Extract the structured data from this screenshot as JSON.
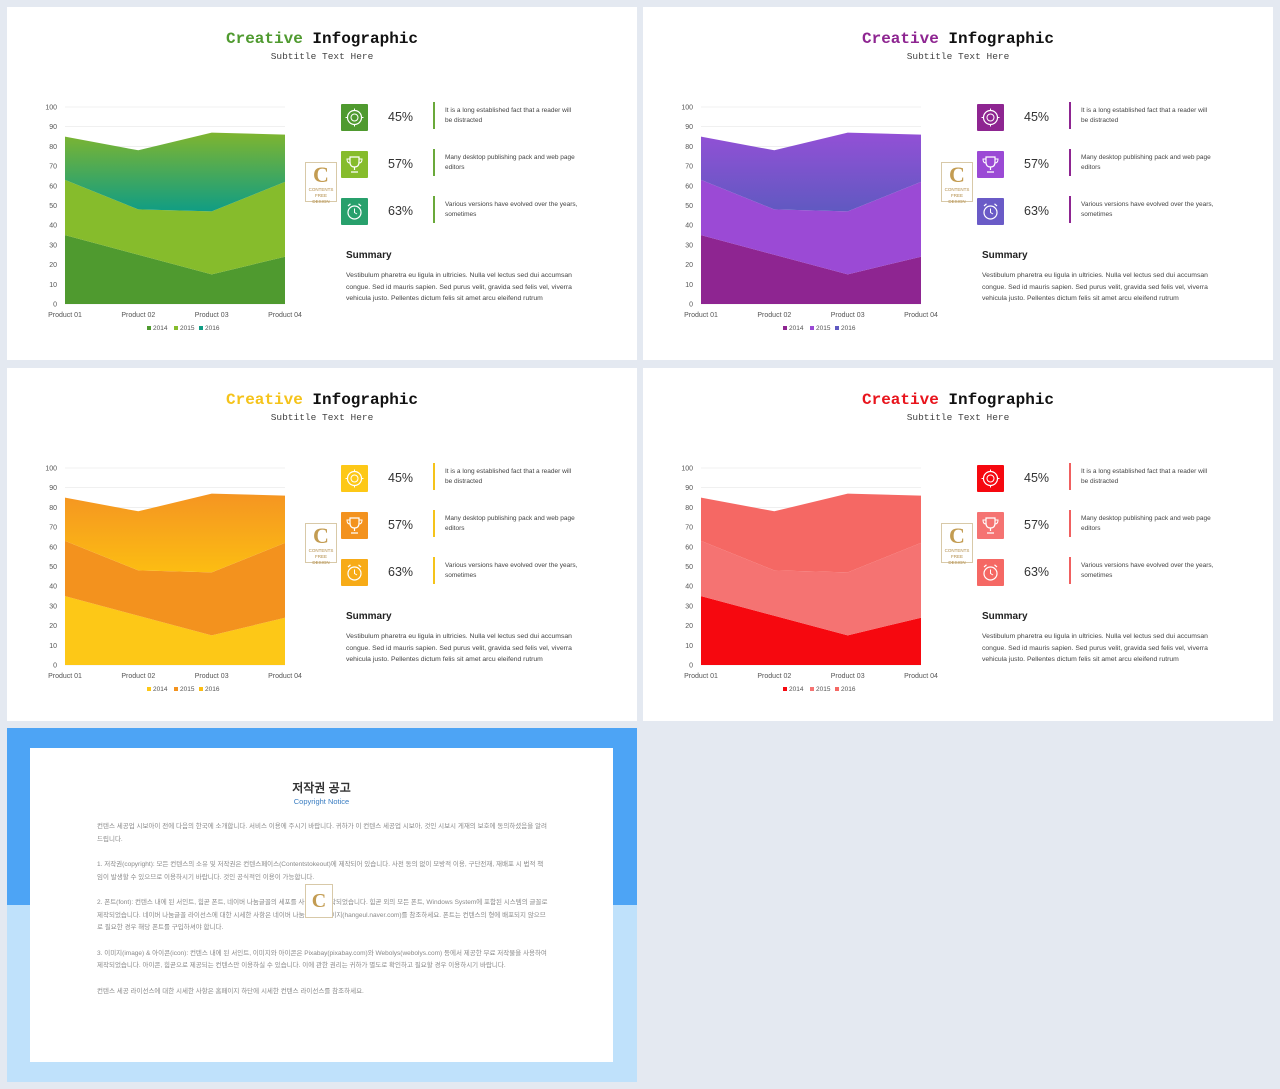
{
  "slides": [
    {
      "title_accent": "Creative",
      "title_rest": " Infographic",
      "subtitle": "Subtitle Text Here",
      "accent": "#4f9a2f",
      "colors": {
        "s2014": "#4f9a2f",
        "s2015": "#86bc2c",
        "s2016_top": "#7fb52f",
        "s2016_bottom": "#109d84",
        "bar": "#6aa93a"
      },
      "icon_colors": [
        "#4f9a2f",
        "#86bc2c",
        "#28a06c"
      ]
    },
    {
      "title_accent": "Creative",
      "title_rest": " Infographic",
      "subtitle": "Subtitle Text Here",
      "accent": "#8e2591",
      "colors": {
        "s2014": "#8e2591",
        "s2015": "#9b4ad5",
        "s2016_top": "#9350d6",
        "s2016_bottom": "#6059c1",
        "bar": "#8e2591"
      },
      "icon_colors": [
        "#8e2591",
        "#9b4ad5",
        "#6a5bc7"
      ]
    },
    {
      "title_accent": "Creative",
      "title_rest": " Infographic",
      "subtitle": "Subtitle Text Here",
      "accent": "#f5c31a",
      "colors": {
        "s2014": "#fdc817",
        "s2015": "#f3921e",
        "s2016_top": "#f59522",
        "s2016_bottom": "#fcbd12",
        "bar": "#f5c31a"
      },
      "icon_colors": [
        "#fdc817",
        "#f3921e",
        "#f7ab17"
      ]
    },
    {
      "title_accent": "Creative",
      "title_rest": " Infographic",
      "subtitle": "Subtitle Text Here",
      "accent": "#e8141c",
      "colors": {
        "s2014": "#f6080f",
        "s2015": "#f57372",
        "s2016_top": "#f56864",
        "s2016_bottom": "#f56864",
        "bar": "#f06060"
      },
      "icon_colors": [
        "#f6080f",
        "#f57372",
        "#f56864"
      ]
    }
  ],
  "stats": [
    {
      "pct": "45%",
      "desc": "It is a long established fact that a reader will be distracted",
      "icon": "badge-icon"
    },
    {
      "pct": "57%",
      "desc": "Many desktop publishing pack and web page editors",
      "icon": "trophy-icon"
    },
    {
      "pct": "63%",
      "desc": "Various versions have evolved over the years, sometimes",
      "icon": "alarm-clock-icon"
    }
  ],
  "summary": {
    "heading": "Summary",
    "text": "Vestibulum pharetra eu ligula in ultricies. Nulla vel lectus sed dui accumsan congue. Sed id mauris sapien. Sed purus velit, gravida sed felis vel, viverra vehicula justo. Pellentes dictum felis sit amet arcu eleifend rutrum"
  },
  "logo": {
    "letter": "C",
    "line1": "CONTENTS",
    "line2": "FREE DESIGN"
  },
  "chart_data": {
    "type": "area",
    "stacked": true,
    "categories": [
      "Product 01",
      "Product 02",
      "Product 03",
      "Product 04"
    ],
    "series": [
      {
        "name": "2014",
        "values": [
          35,
          25,
          15,
          24
        ]
      },
      {
        "name": "2015",
        "values": [
          28,
          23,
          32,
          38
        ]
      },
      {
        "name": "2016",
        "values": [
          22,
          30,
          40,
          24
        ]
      }
    ],
    "ylim": [
      0,
      100
    ],
    "yticks": [
      "0",
      "10",
      "20",
      "30",
      "40",
      "50",
      "60",
      "70",
      "80",
      "90",
      "100"
    ],
    "legend": "bottom"
  },
  "copyright": {
    "title": "저작권 공고",
    "subtitle": "Copyright Notice",
    "paragraphs": [
      "컨텐스 세공업 시보아이 전에 다음의 한국에 소개합니다. 서비스 이용에 주시기 바랍니다. 귀하가 이 컨텐스 세공업 시보아, 것인 시보시 게재의 보호에 동의하셨음을 알려드립니다.",
      "1. 저작권(copyright): 모든 컨텐스의 소유 및 저작권은 컨텐스페이스(Contentstokeout)에 제작되어 있습니다. 사전 동의 없이 모방적 이용, 구단전재, 재배포 시 법적 책임이 발생할 수 있으므로 이용하시기 바랍니다. 것인 공식적인 이용이 가능합니다.",
      "2. 폰트(font): 컨텐스 내에 된 서인트, 힘곧 폰트, 네이버 나눔글꼴의 세포를 사용하여 제작되었습니다. 힘곧 외의 모든 폰트, Windows System에 포함된 시스템의 글꼴로 제작되었습니다. 네이버 나눔글꼴 라이선스에 대한 시세한 사항은 네이버 나눔글꼴 홈페이지(hangeul.naver.com)를 참조하세요. 폰트는 컨텐스의 형에 배포되지 않으므로 필요한 경우 해당 폰트를 구입하셔야 합니다.",
      "3. 이미지(image) & 아이콘(icon): 컨텐스 내에 된 서인트, 이미지와 아이콘은 Pixabay(pixabay.com)와 Webolys(webolys.com) 등에서 제공한 무료 저작물을 사용하여 제작되었습니다. 아이콘, 힘곧으로 제공되는 컨텐스만 이용하실 수 있습니다. 이에 관한 권리는 귀하가 별도로 확인하고 필요할 경우 이용하시기 바랍니다.",
      "컨텐스 세공 라이선스에 대한 시세한 사항은 홈페이지 하단에 시세한 컨텐스 라이선스를 참조하세요."
    ]
  }
}
